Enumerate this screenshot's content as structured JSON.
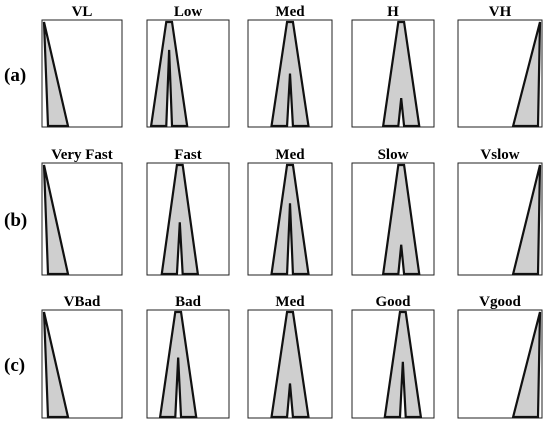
{
  "rows": [
    {
      "label": "(a)",
      "panels": [
        {
          "title": "VL",
          "shape": "left-wedge",
          "peak": 0.0,
          "inner": null
        },
        {
          "title": "Low",
          "shape": "lambda",
          "peak": 0.27,
          "inner": 0.72
        },
        {
          "title": "Med",
          "shape": "lambda",
          "peak": 0.5,
          "inner": 0.5
        },
        {
          "title": "H",
          "shape": "lambda",
          "peak": 0.6,
          "inner": 0.27
        },
        {
          "title": "VH",
          "shape": "right-wedge",
          "peak": 1.0,
          "inner": null
        }
      ]
    },
    {
      "label": "(b)",
      "panels": [
        {
          "title": "Very Fast",
          "shape": "left-wedge",
          "peak": 0.0,
          "inner": null
        },
        {
          "title": "Fast",
          "shape": "lambda",
          "peak": 0.4,
          "inner": 0.47
        },
        {
          "title": "Med",
          "shape": "lambda",
          "peak": 0.5,
          "inner": 0.64
        },
        {
          "title": "Slow",
          "shape": "lambda",
          "peak": 0.6,
          "inner": 0.27
        },
        {
          "title": "Vslow",
          "shape": "right-wedge",
          "peak": 1.0,
          "inner": null
        }
      ]
    },
    {
      "label": "(c)",
      "panels": [
        {
          "title": "VBad",
          "shape": "left-wedge",
          "peak": 0.0,
          "inner": null
        },
        {
          "title": "Bad",
          "shape": "lambda",
          "peak": 0.38,
          "inner": 0.56
        },
        {
          "title": "Med",
          "shape": "lambda",
          "peak": 0.5,
          "inner": 0.32
        },
        {
          "title": "Good",
          "shape": "lambda",
          "peak": 0.62,
          "inner": 0.52
        },
        {
          "title": "Vgood",
          "shape": "right-wedge",
          "peak": 1.0,
          "inner": null
        }
      ]
    }
  ]
}
